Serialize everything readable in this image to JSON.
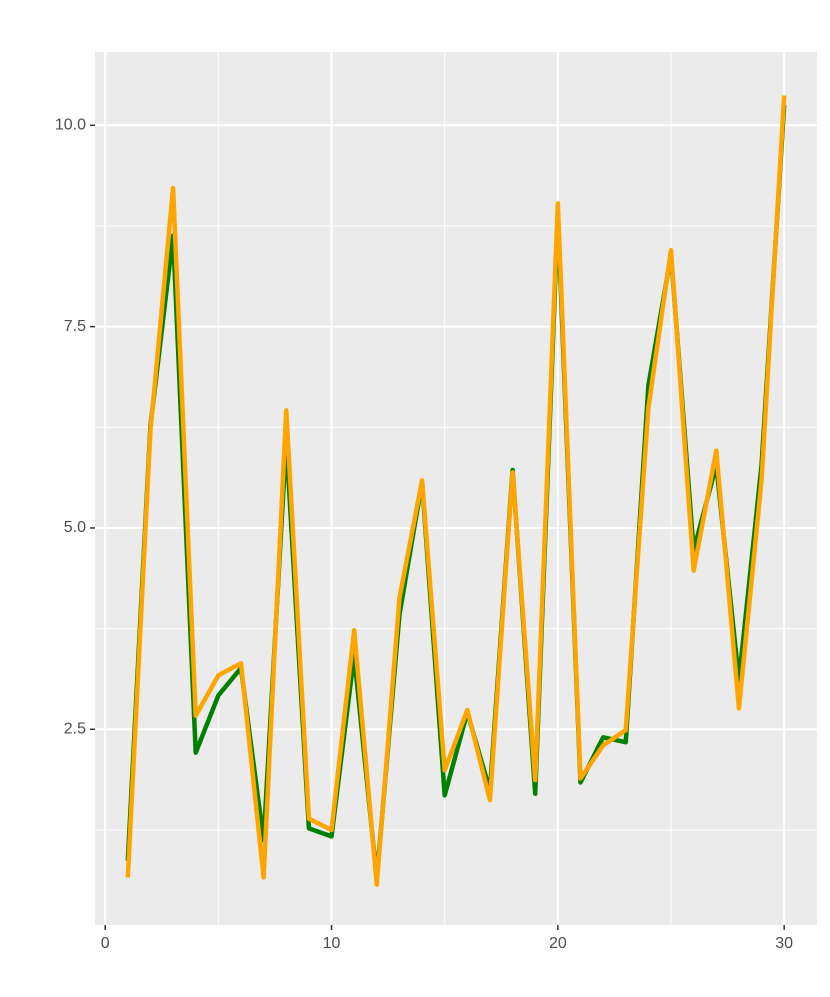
{
  "chart_data": {
    "type": "line",
    "x": [
      1,
      2,
      3,
      4,
      5,
      6,
      7,
      8,
      9,
      10,
      11,
      12,
      13,
      14,
      15,
      16,
      17,
      18,
      19,
      20,
      21,
      22,
      23,
      24,
      25,
      26,
      27,
      28,
      29,
      30
    ],
    "series": [
      {
        "color": "#008000",
        "values": [
          0.87,
          6.27,
          8.63,
          2.21,
          2.92,
          3.26,
          1.12,
          6.09,
          1.27,
          1.17,
          3.42,
          0.65,
          3.92,
          5.57,
          1.68,
          2.71,
          1.74,
          5.72,
          1.7,
          8.88,
          1.84,
          2.4,
          2.34,
          6.77,
          8.39,
          4.72,
          5.78,
          3.11,
          5.78,
          10.25
        ]
      },
      {
        "color": "#ffa500",
        "values": [
          0.66,
          6.21,
          9.22,
          2.67,
          3.17,
          3.32,
          0.66,
          6.46,
          1.39,
          1.25,
          3.73,
          0.57,
          4.13,
          5.59,
          1.99,
          2.74,
          1.62,
          5.69,
          1.87,
          9.03,
          1.89,
          2.3,
          2.49,
          6.49,
          8.45,
          4.47,
          5.96,
          2.76,
          5.59,
          10.37
        ]
      }
    ],
    "xlim": [
      -0.45,
      31.45
    ],
    "xticks": [
      0,
      10,
      20,
      30
    ],
    "x_minor_ticks": [
      5,
      15,
      25
    ],
    "ylim": [
      0.07,
      10.91
    ],
    "yticks": [
      2.5,
      {
        "value": 5,
        "label": "5.0"
      },
      7.5,
      {
        "value": 10,
        "label": "10.0"
      }
    ],
    "y_minor_ticks": [
      1.25,
      3.75,
      6.25,
      8.75
    ],
    "grid": true
  }
}
